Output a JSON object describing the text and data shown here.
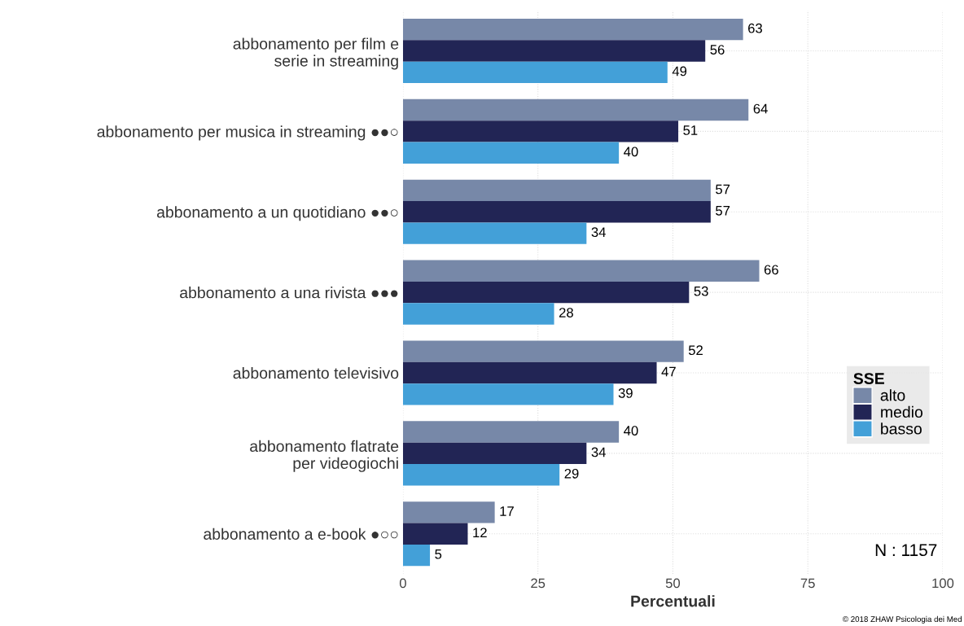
{
  "chart_data": {
    "type": "bar",
    "orientation": "horizontal",
    "xlabel": "Percentuali",
    "legend_title": "SSE",
    "legend": "right",
    "categories": [
      "abbonamento per film e\nserie in streaming",
      "abbonamento per musica in streaming ●●○",
      "abbonamento a un quotidiano ●●○",
      "abbonamento a una rivista ●●●",
      "abbonamento televisivo",
      "abbonamento flatrate\nper videogiochi",
      "abbonamento a e-book ●○○"
    ],
    "series": [
      {
        "name": "alto",
        "color": "#7788a8",
        "values": [
          63,
          64,
          57,
          66,
          52,
          40,
          17
        ]
      },
      {
        "name": "medio",
        "color": "#222555",
        "values": [
          56,
          51,
          57,
          53,
          47,
          34,
          12
        ]
      },
      {
        "name": "basso",
        "color": "#43a0d8",
        "values": [
          49,
          40,
          34,
          28,
          39,
          29,
          5
        ]
      }
    ],
    "xlim": [
      0,
      100
    ],
    "xticks": [
      0,
      25,
      50,
      75,
      100
    ],
    "grid": true,
    "data_labels": true,
    "annotations": [
      "N : 1157",
      "© 2018 ZHAW Psicologia dei Med"
    ]
  }
}
